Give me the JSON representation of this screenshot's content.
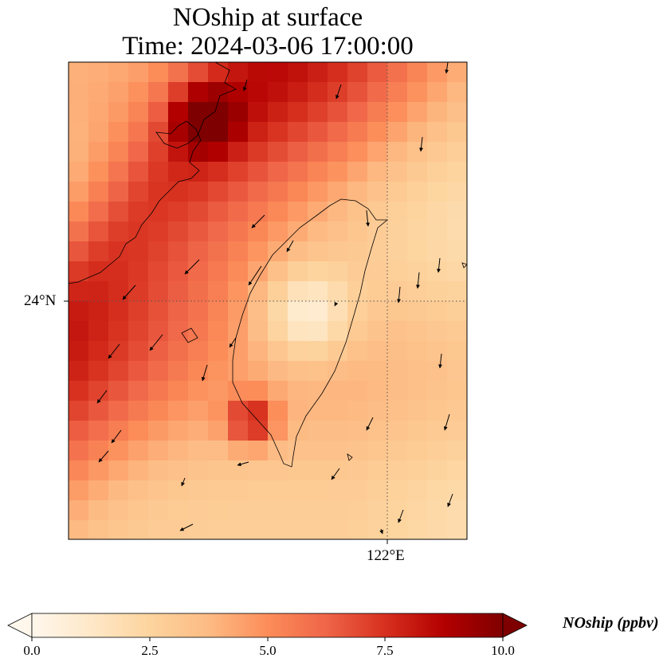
{
  "title": {
    "line1": "NOship at surface",
    "line2": "Time: 2024-03-06 17:00:00"
  },
  "axes": {
    "lat_tick": "24°N",
    "lon_tick": "122°E",
    "gridlines": "dotted"
  },
  "colorbar": {
    "label": "NOship (ppbv)",
    "ticks": [
      "0.0",
      "2.5",
      "5.0",
      "7.5",
      "10.0"
    ],
    "min": 0,
    "max": 10,
    "extend": "both",
    "colormap": "OrRd",
    "colors": [
      "#fff7ec",
      "#fee8c8",
      "#fdd49e",
      "#fdbb84",
      "#fc8d59",
      "#ef6548",
      "#d7301f",
      "#b30000",
      "#7f0000"
    ]
  },
  "map_content": {
    "region": "Taiwan Strait",
    "wind_vectors": "shown",
    "coastlines": "shown"
  }
}
